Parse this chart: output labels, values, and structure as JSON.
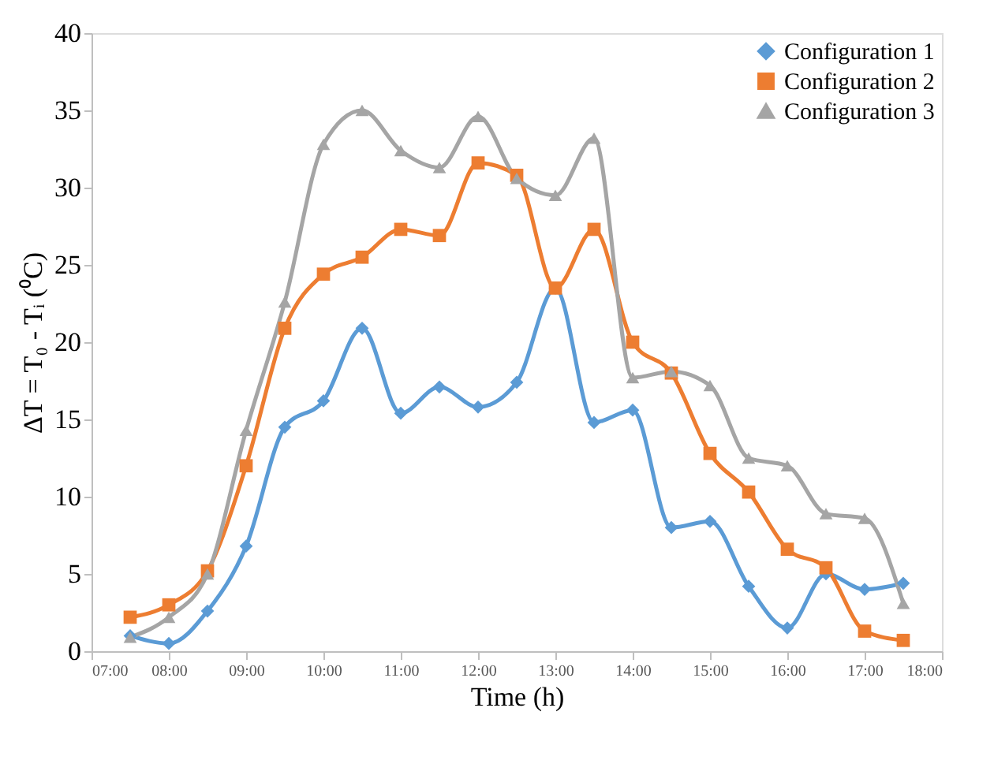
{
  "chart_data": {
    "type": "line",
    "xlabel": "Time (h)",
    "ylabel": "ΔT = T₀ - Tᵢ (⁰C)",
    "x": [
      7.5,
      8,
      8.5,
      9,
      9.5,
      10,
      10.5,
      11,
      11.5,
      12,
      12.5,
      13,
      13.5,
      14,
      14.5,
      15,
      15.5,
      16,
      16.5,
      17,
      17.5
    ],
    "series": [
      {
        "name": "Configuration 1",
        "color": "#5b9bd5",
        "marker": "diamond",
        "values": [
          1.0,
          0.5,
          2.6,
          6.8,
          14.5,
          16.2,
          20.9,
          15.4,
          17.1,
          15.8,
          17.4,
          23.5,
          14.8,
          15.6,
          8.0,
          8.4,
          4.2,
          1.5,
          5.0,
          4.0,
          4.4
        ]
      },
      {
        "name": "Configuration 2",
        "color": "#ed7d31",
        "marker": "square",
        "values": [
          2.2,
          3.0,
          5.2,
          12.0,
          20.9,
          24.4,
          25.5,
          27.3,
          26.9,
          31.6,
          30.8,
          23.5,
          27.3,
          20.0,
          18.0,
          12.8,
          10.3,
          6.6,
          5.4,
          1.3,
          0.7
        ]
      },
      {
        "name": "Configuration 3",
        "color": "#a5a5a5",
        "marker": "triangle",
        "values": [
          0.9,
          2.2,
          5.0,
          14.3,
          22.6,
          32.8,
          35.0,
          32.4,
          31.3,
          34.6,
          30.6,
          29.5,
          33.2,
          17.7,
          18.1,
          17.2,
          12.5,
          12.0,
          8.9,
          8.6,
          3.1
        ]
      }
    ],
    "xlim": [
      7,
      18
    ],
    "xticks": [
      {
        "value": 7,
        "label": "07:00"
      },
      {
        "value": 8,
        "label": "08:00"
      },
      {
        "value": 9,
        "label": "09:00"
      },
      {
        "value": 10,
        "label": "10:00"
      },
      {
        "value": 11,
        "label": "11:00"
      },
      {
        "value": 12,
        "label": "12:00"
      },
      {
        "value": 13,
        "label": "13:00"
      },
      {
        "value": 14,
        "label": "14:00"
      },
      {
        "value": 15,
        "label": "15:00"
      },
      {
        "value": 16,
        "label": "16:00"
      },
      {
        "value": 17,
        "label": "17:00"
      },
      {
        "value": 18,
        "label": "18:00"
      }
    ],
    "ylim": [
      0,
      40
    ],
    "yticks": [
      0,
      5,
      10,
      15,
      20,
      25,
      30,
      35,
      40
    ],
    "grid": false,
    "legend": "top right",
    "line_style": "solid"
  }
}
